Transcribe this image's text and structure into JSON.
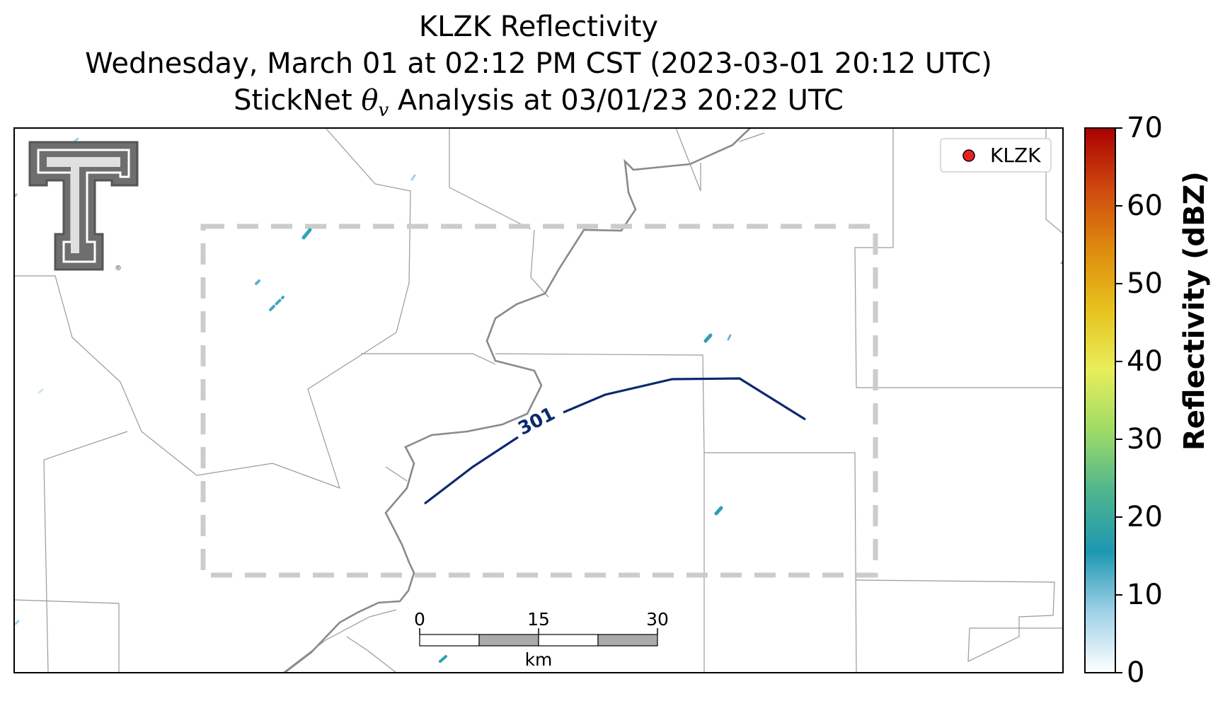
{
  "title": {
    "line1": "KLZK Reflectivity",
    "line2": "Wednesday, March 01 at 02:12 PM CST (2023-03-01 20:12 UTC)",
    "line3_prefix": "StickNet ",
    "line3_theta": "θ",
    "line3_sub": "v",
    "line3_suffix": " Analysis at 03/01/23 20:22 UTC"
  },
  "legend": {
    "label": "KLZK",
    "marker_color": "#e8231f"
  },
  "contour": {
    "label": "301",
    "color": "#0b2a6e"
  },
  "scale_bar": {
    "ticks": [
      "0",
      "15",
      "30"
    ],
    "unit": "km"
  },
  "colorbar": {
    "title": "Reflectivity (dBZ)",
    "ticks": [
      "0",
      "10",
      "20",
      "30",
      "40",
      "50",
      "60",
      "70"
    ],
    "min": 0,
    "max": 70,
    "stops": [
      "#ffffff",
      "#9fd2e8",
      "#1e97b1",
      "#4fb58e",
      "#9edb66",
      "#e8ee5b",
      "#e7c21f",
      "#de8a0e",
      "#cf4810",
      "#a90000"
    ]
  },
  "logo": {
    "name": "Texas Tech Double T",
    "mark": "®"
  }
}
